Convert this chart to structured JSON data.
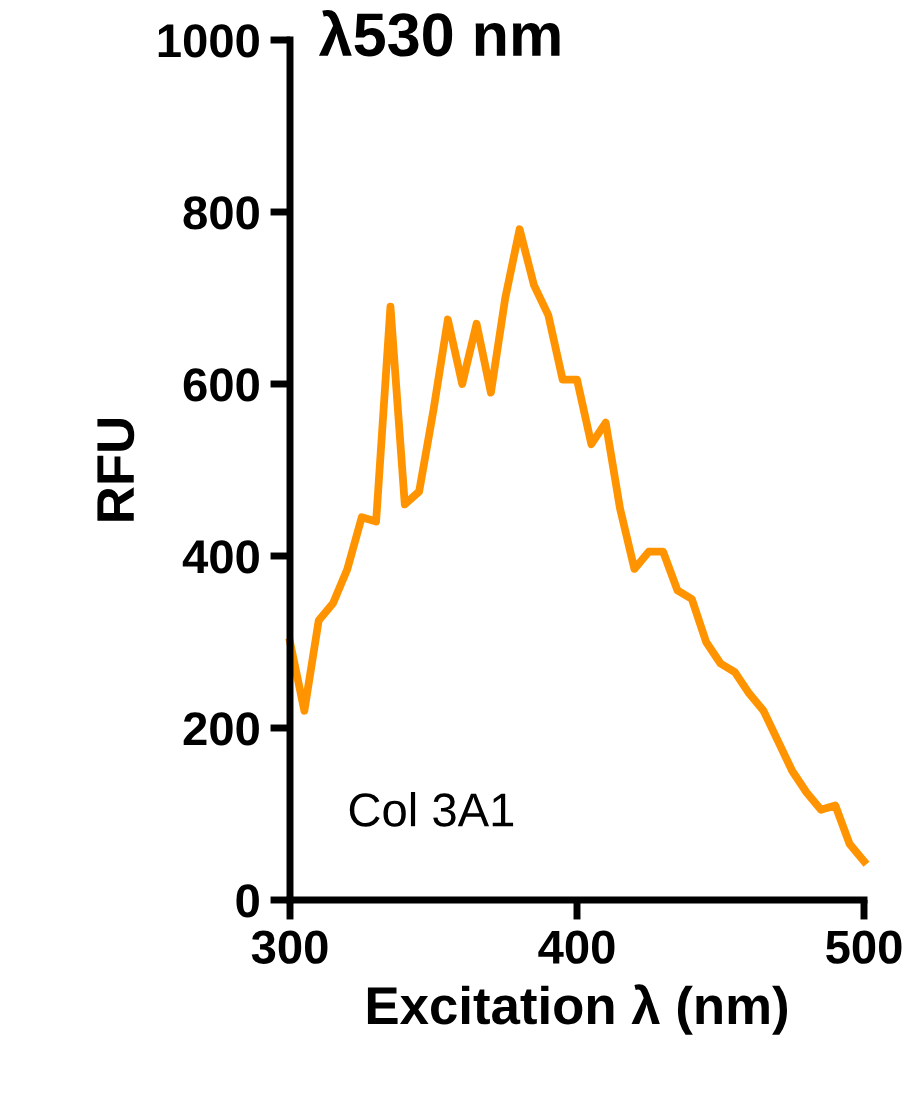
{
  "chart_data": {
    "type": "line",
    "title": "λ530 nm",
    "xlabel": "Excitation λ (nm)",
    "ylabel": "RFU",
    "x": [
      300,
      305,
      310,
      315,
      320,
      325,
      330,
      335,
      340,
      345,
      350,
      355,
      360,
      365,
      370,
      375,
      380,
      385,
      390,
      395,
      400,
      405,
      410,
      415,
      420,
      425,
      430,
      435,
      440,
      445,
      450,
      455,
      460,
      465,
      470,
      475,
      480,
      485,
      490,
      495,
      500
    ],
    "series": [
      {
        "color": "#ff9400",
        "values": [
          300,
          220,
          325,
          345,
          385,
          445,
          440,
          690,
          460,
          475,
          570,
          675,
          600,
          670,
          590,
          700,
          780,
          715,
          680,
          605,
          605,
          530,
          555,
          455,
          385,
          405,
          405,
          360,
          350,
          300,
          275,
          265,
          240,
          220,
          185,
          150,
          125,
          105,
          110,
          65,
          45
        ]
      }
    ],
    "xlim": [
      300,
      500
    ],
    "xticks": [
      300,
      400,
      500
    ],
    "ylim": [
      0,
      1000
    ],
    "yticks": [
      0,
      200,
      400,
      600,
      800,
      1000
    ],
    "annotations": [
      "Col 3A1"
    ],
    "grid": false,
    "legend": false,
    "marker": "none",
    "line_style": "solid"
  }
}
